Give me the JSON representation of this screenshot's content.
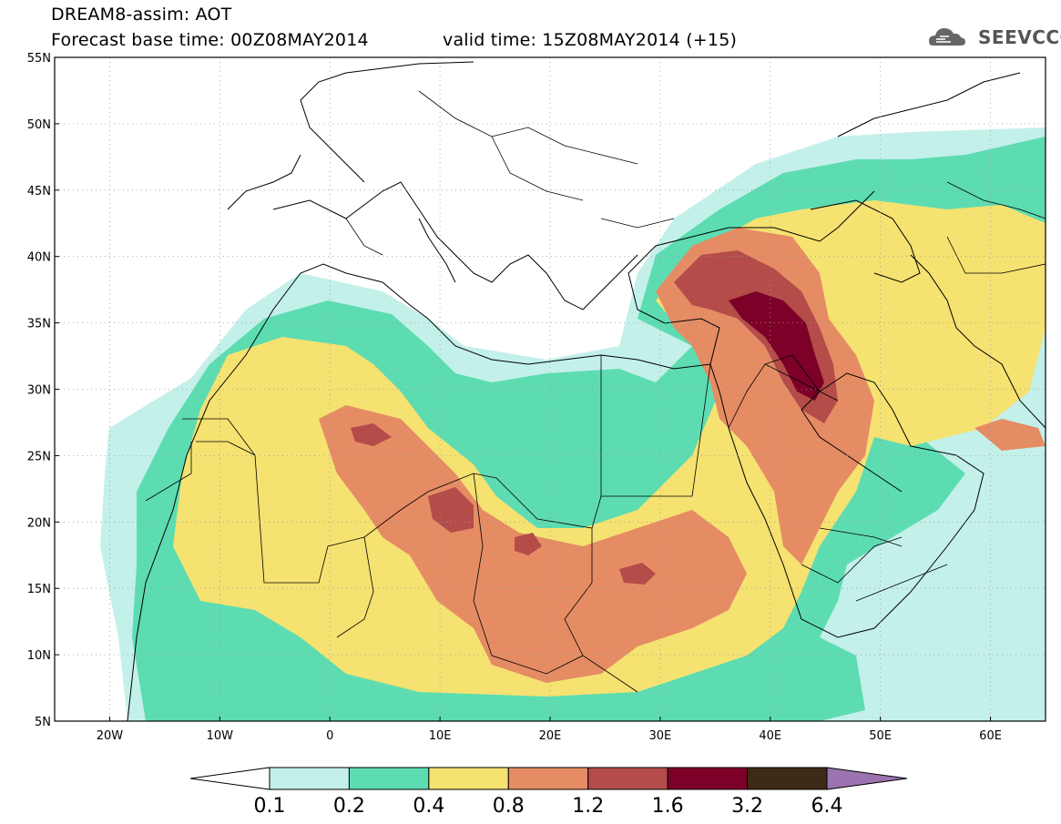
{
  "header": {
    "title": "DREAM8-assim: AOT",
    "base_time": "Forecast base time: 00Z08MAY2014",
    "valid_time": "valid time: 15Z08MAY2014 (+15)"
  },
  "logo": {
    "text": "SEEVCCC",
    "icon": "cloud-icon"
  },
  "map": {
    "lat_ticks": [
      "55N",
      "50N",
      "45N",
      "40N",
      "35N",
      "30N",
      "25N",
      "20N",
      "15N",
      "10N",
      "5N"
    ],
    "lon_ticks": [
      "20W",
      "10W",
      "0",
      "10E",
      "20E",
      "30E",
      "40E",
      "50E",
      "60E"
    ],
    "lon_range": [
      -25,
      65
    ],
    "lat_range": [
      5,
      55
    ],
    "gridlines": "dotted"
  },
  "colorbar": {
    "labels": [
      "0.1",
      "0.2",
      "0.4",
      "0.8",
      "1.2",
      "1.6",
      "3.2",
      "6.4"
    ],
    "colors": [
      "#ffffff",
      "#c4f0ea",
      "#5ddcb2",
      "#f5e271",
      "#e58c64",
      "#b44c4a",
      "#7c0028",
      "#3f2a18",
      "#9b73b0"
    ]
  },
  "chart_data": {
    "type": "heatmap",
    "title": "DREAM8-assim: AOT",
    "variable": "AOT",
    "base_time": "00Z08MAY2014",
    "valid_time": "15Z08MAY2014 (+15)",
    "xlabel": "",
    "ylabel": "",
    "xlim": [
      -25,
      65
    ],
    "ylim": [
      5,
      55
    ],
    "levels": [
      0.1,
      0.2,
      0.4,
      0.8,
      1.2,
      1.6,
      3.2,
      6.4
    ],
    "level_colors": [
      "#c4f0ea",
      "#5ddcb2",
      "#f5e271",
      "#e58c64",
      "#b44c4a",
      "#7c0028",
      "#3f2a18"
    ],
    "hotspots": [
      {
        "lon": 42,
        "lat": 33,
        "max_level": 3.2
      },
      {
        "lon": 4,
        "lat": 27,
        "max_level": 1.6
      },
      {
        "lon": 12,
        "lat": 21,
        "max_level": 1.6
      },
      {
        "lon": 29,
        "lat": 16,
        "max_level": 1.6
      },
      {
        "lon": 35,
        "lat": 37,
        "max_level": 1.6
      }
    ]
  }
}
